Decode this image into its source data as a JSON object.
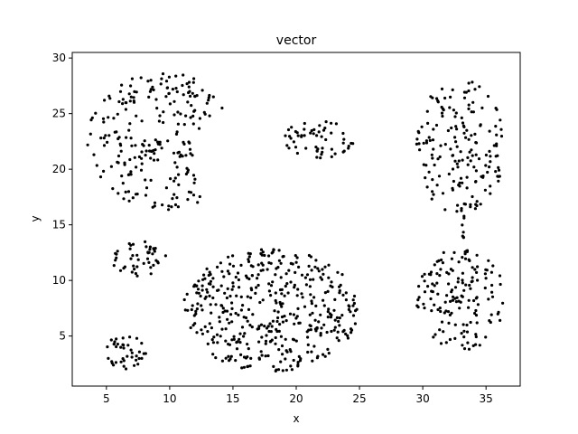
{
  "chart_data": {
    "type": "scatter",
    "title": "vector",
    "xlabel": "x",
    "ylabel": "y",
    "xlim": [
      2.3,
      37.7
    ],
    "ylim": [
      0.5,
      30.5
    ],
    "xticks": [
      5,
      10,
      15,
      20,
      25,
      30,
      35
    ],
    "yticks": [
      5,
      10,
      15,
      20,
      25,
      30
    ],
    "grid": false,
    "marker_color": "#000000",
    "clusters": [
      {
        "shape": "crescent",
        "cx": 9.5,
        "cy": 22.5,
        "rx": 6.0,
        "ry": 6.2,
        "inner_cx": 17.5,
        "inner_cy": 21.0,
        "inner_r": 5.6,
        "count": 230
      },
      {
        "shape": "ellipse",
        "cx": 21.8,
        "cy": 22.7,
        "rx": 2.8,
        "ry": 1.8,
        "count": 55
      },
      {
        "shape": "ellipse",
        "cx": 33.0,
        "cy": 22.0,
        "rx": 3.5,
        "ry": 6.2,
        "count": 170
      },
      {
        "shape": "bridge",
        "x0": 33.0,
        "y0": 17.0,
        "x1": 33.4,
        "y1": 12.5,
        "count": 12
      },
      {
        "shape": "ellipse",
        "cx": 7.5,
        "cy": 12.0,
        "rx": 2.2,
        "ry": 1.6,
        "count": 45
      },
      {
        "shape": "ellipse",
        "cx": 18.0,
        "cy": 7.3,
        "rx": 7.0,
        "ry": 5.5,
        "count": 430
      },
      {
        "shape": "ellipse",
        "cx": 33.0,
        "cy": 8.3,
        "rx": 3.5,
        "ry": 4.6,
        "count": 150
      },
      {
        "shape": "ellipse",
        "cx": 6.5,
        "cy": 3.5,
        "rx": 1.8,
        "ry": 1.5,
        "count": 40
      }
    ]
  }
}
